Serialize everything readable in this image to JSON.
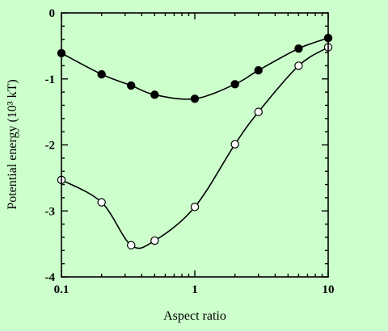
{
  "chart_data": {
    "type": "line",
    "xlabel": "Aspect ratio",
    "ylabel": "Potential energy (10³ kT)",
    "xscale": "log",
    "xlim": [
      0.1,
      10
    ],
    "ylim": [
      -4,
      0
    ],
    "x_ticks": [
      0.1,
      1,
      10
    ],
    "x_tick_labels": [
      "0.1",
      "1",
      "10"
    ],
    "y_ticks": [
      0,
      -1,
      -2,
      -3,
      -4
    ],
    "y_tick_labels": [
      "0",
      "-1",
      "-2",
      "-3",
      "-4"
    ],
    "grid": false,
    "legend": "none",
    "series": [
      {
        "marker": "filled-circle",
        "x": [
          0.1,
          0.2,
          0.333,
          0.5,
          1,
          2,
          3,
          6,
          10
        ],
        "y": [
          -0.61,
          -0.93,
          -1.1,
          -1.24,
          -1.3,
          -1.08,
          -0.87,
          -0.54,
          -0.38
        ]
      },
      {
        "marker": "open-circle",
        "x": [
          0.1,
          0.2,
          0.333,
          0.5,
          1,
          2,
          3,
          6,
          10
        ],
        "y": [
          -2.53,
          -2.87,
          -3.52,
          -3.45,
          -2.94,
          -1.99,
          -1.5,
          -0.8,
          -0.52
        ]
      }
    ]
  }
}
